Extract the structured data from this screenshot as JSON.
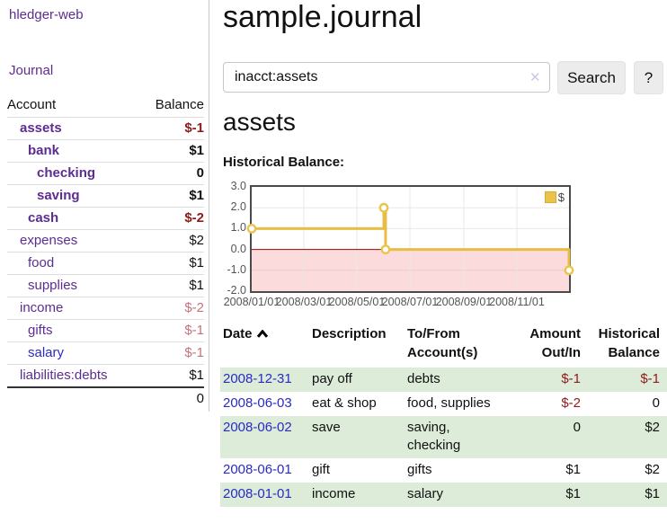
{
  "app": {
    "brand": "hledger-web",
    "nav": {
      "journal": "Journal"
    }
  },
  "sidebar": {
    "header": {
      "account": "Account",
      "balance": "Balance"
    },
    "accounts": [
      {
        "name": "assets",
        "balance": "$-1"
      },
      {
        "name": "bank",
        "balance": "$1"
      },
      {
        "name": "checking",
        "balance": "0"
      },
      {
        "name": "saving",
        "balance": "$1"
      },
      {
        "name": "cash",
        "balance": "$-2"
      },
      {
        "name": "expenses",
        "balance": "$2"
      },
      {
        "name": "food",
        "balance": "$1"
      },
      {
        "name": "supplies",
        "balance": "$1"
      },
      {
        "name": "income",
        "balance": "$-2"
      },
      {
        "name": "gifts",
        "balance": "$-1"
      },
      {
        "name": "salary",
        "balance": "$-1"
      },
      {
        "name": "liabilities:debts",
        "balance": "$1"
      }
    ],
    "total": "0"
  },
  "main": {
    "title": "sample.journal",
    "search": {
      "value": "inacct:assets",
      "clear_icon": "✕",
      "button": "Search",
      "help": "?"
    },
    "account_heading": "assets",
    "chart_title": "Historical Balance:"
  },
  "chart_data": {
    "type": "line",
    "style": "steps",
    "title": "Historical Balance:",
    "series": [
      {
        "name": "$",
        "color": "#e7bd45",
        "points": [
          [
            "2008-01-01",
            1
          ],
          [
            "2008-06-01",
            2
          ],
          [
            "2008-06-02",
            2
          ],
          [
            "2008-06-03",
            0
          ],
          [
            "2008-12-31",
            -1
          ]
        ]
      }
    ],
    "x_ticks": [
      "2008/01/01",
      "2008/03/01",
      "2008/05/01",
      "2008/07/01",
      "2008/09/01",
      "2008/11/01"
    ],
    "y_ticks": [
      3.0,
      2.0,
      1.0,
      0.0,
      -1.0,
      -2.0
    ],
    "ylim": [
      -2,
      3
    ],
    "x_range_days": 365,
    "legend_position": "top-right",
    "colors": {
      "negative_region": "#fbdbdb",
      "zero_line": "#a40000",
      "grid": "#e8e8e8"
    }
  },
  "register": {
    "headers": {
      "date": "Date",
      "description": "Description",
      "accounts": "To/From Account(s)",
      "amount": "Amount Out/In",
      "balance": "Historical Balance"
    },
    "rows": [
      {
        "date": "2008-12-31",
        "description": "pay off",
        "accounts": "debts",
        "amount": "$-1",
        "balance": "$-1"
      },
      {
        "date": "2008-06-03",
        "description": "eat & shop",
        "accounts": "food, supplies",
        "amount": "$-2",
        "balance": "0"
      },
      {
        "date": "2008-06-02",
        "description": "save",
        "accounts": "saving, checking",
        "amount": "0",
        "balance": "$2"
      },
      {
        "date": "2008-06-01",
        "description": "gift",
        "accounts": "gifts",
        "amount": "$1",
        "balance": "$2"
      },
      {
        "date": "2008-01-01",
        "description": "income",
        "accounts": "salary",
        "amount": "$1",
        "balance": "$1"
      }
    ]
  }
}
